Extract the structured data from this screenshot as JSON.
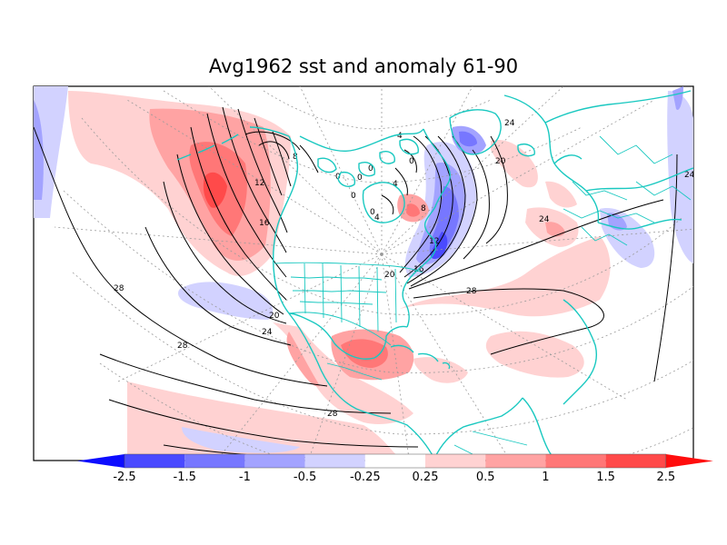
{
  "title": "Avg1962 sst and anomaly 61-90",
  "colorbar": {
    "colors": [
      "#0d0dff",
      "#4a4aff",
      "#7777ff",
      "#a3a3ff",
      "#d2d2ff",
      "#ffffff",
      "#ffd2d2",
      "#ffa3a3",
      "#ff7777",
      "#ff4a4a",
      "#ff0d0d"
    ],
    "ticks": [
      "-2.5",
      "-1.5",
      "-1",
      "-0.5",
      "-0.25",
      "0.25",
      "0.5",
      "1",
      "1.5",
      "2.5"
    ]
  },
  "contour_labels": [
    "0",
    "0",
    "0",
    "0",
    "0",
    "0",
    "4",
    "4",
    "4",
    "8",
    "8",
    "12",
    "12",
    "16",
    "16",
    "20",
    "20",
    "20",
    "24",
    "24",
    "24",
    "24",
    "28",
    "28",
    "28",
    "28"
  ],
  "colors": {
    "coast": "#19c8c0",
    "contour": "#000000",
    "graticule": "#9a9a9a"
  }
}
